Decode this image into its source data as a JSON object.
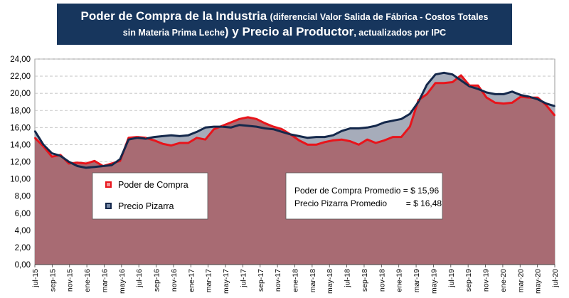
{
  "title": {
    "line1_big": "Poder de Compra de la Industria",
    "line1_small": "(diferencial Valor Salida de Fábrica - Costos Totales",
    "line2_small_a": "sin Materia Prima Leche",
    "line2_big": ") y Precio al Productor",
    "line2_small_b": ", actualizados por IPC"
  },
  "legend": {
    "poder": "Poder de Compra",
    "pizarra": "Precio Pizarra"
  },
  "annotation": {
    "line1": "Poder de Compra Promedio = $ 15,96",
    "line2": "Precio Pizarra Promedio        = $ 16,48"
  },
  "colors": {
    "poder_line": "#e8141b",
    "pizarra_line": "#14284b",
    "poder_fill": "#a86b73",
    "pizarra_fill": "#a6acba",
    "grid": "#bfbfbf",
    "title_bg": "#17365d"
  },
  "chart_data": {
    "type": "area",
    "ylim": [
      0,
      24
    ],
    "yticks": [
      "0,00",
      "2,00",
      "4,00",
      "6,00",
      "8,00",
      "10,00",
      "12,00",
      "14,00",
      "16,00",
      "18,00",
      "20,00",
      "22,00",
      "24,00"
    ],
    "grid": true,
    "legend_position": "left-center",
    "xtick_labels": [
      "jul-15",
      "sep-15",
      "nov-15",
      "ene-16",
      "mar-16",
      "may-16",
      "jul-16",
      "sep-16",
      "nov-16",
      "ene-17",
      "mar-17",
      "may-17",
      "jul-17",
      "sep-17",
      "nov-17",
      "ene-18",
      "mar-18",
      "may-18",
      "jul-18",
      "sep-18",
      "nov-18",
      "ene-19",
      "mar-19",
      "may-19",
      "jul-19",
      "sep-19",
      "nov-19",
      "ene-20",
      "mar-20",
      "may-20",
      "jul-20"
    ],
    "series": [
      {
        "name": "Poder de Compra",
        "values": [
          14.8,
          13.8,
          12.6,
          12.8,
          11.8,
          11.9,
          11.8,
          12.1,
          11.5,
          11.8,
          12.1,
          14.8,
          14.9,
          14.8,
          14.5,
          14.1,
          13.9,
          14.2,
          14.2,
          14.8,
          14.6,
          15.8,
          16.2,
          16.6,
          17.0,
          17.2,
          17.0,
          16.5,
          16.1,
          15.8,
          15.2,
          14.5,
          14.0,
          14.0,
          14.3,
          14.5,
          14.6,
          14.4,
          14.0,
          14.6,
          14.2,
          14.5,
          14.9,
          14.9,
          16.1,
          19.2,
          19.9,
          21.2,
          21.2,
          21.3,
          22.1,
          20.9,
          20.9,
          19.5,
          18.9,
          18.8,
          18.9,
          19.6,
          19.5,
          19.5,
          18.6,
          17.4
        ]
      },
      {
        "name": "Precio Pizarra",
        "values": [
          15.6,
          14.0,
          13.0,
          12.7,
          12.0,
          11.5,
          11.3,
          11.4,
          11.5,
          11.6,
          12.3,
          14.6,
          14.8,
          14.7,
          14.9,
          15.0,
          15.1,
          15.0,
          15.1,
          15.5,
          16.0,
          16.1,
          16.1,
          16.0,
          16.3,
          16.2,
          16.1,
          15.9,
          15.8,
          15.5,
          15.2,
          15.0,
          14.8,
          14.9,
          14.9,
          15.1,
          15.6,
          15.9,
          15.9,
          16.0,
          16.2,
          16.6,
          16.8,
          17.0,
          17.6,
          19.0,
          21.0,
          22.2,
          22.4,
          22.2,
          21.5,
          20.8,
          20.5,
          20.1,
          19.9,
          19.9,
          20.2,
          19.8,
          19.6,
          19.3,
          18.8,
          18.5
        ]
      }
    ]
  }
}
